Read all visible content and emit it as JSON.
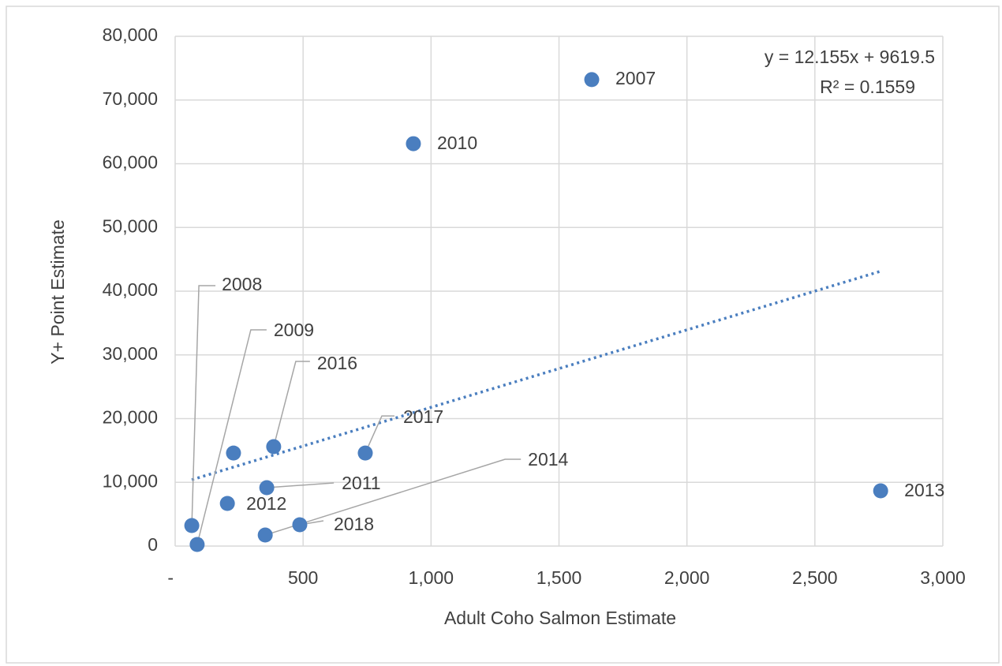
{
  "chart_data": {
    "type": "scatter",
    "x_label": "Adult Coho Salmon Estimate",
    "y_label": "Y+ Point Estimate",
    "labels": [
      "2007",
      "2008",
      "2009",
      "2010",
      "2011",
      "2012",
      "2013",
      "2014",
      null,
      "2016",
      "2017",
      "2018"
    ],
    "x": [
      1628,
      65,
      86,
      931,
      358,
      204,
      2757,
      352,
      228,
      385,
      743,
      487
    ],
    "series": [
      {
        "color": "#4a7ebf",
        "values": [
          73200,
          3220,
          250,
          63150,
          9160,
          6690,
          8670,
          1730,
          14600,
          15600,
          14600,
          3340
        ]
      }
    ],
    "trendline": {
      "slope": 12.155,
      "intercept": 9619.5,
      "equation": "y = 12.155x + 9619.5",
      "r_squared": "R² = 0.1559",
      "color": "#4a7ebf"
    },
    "xlim": [
      0,
      3000
    ],
    "xticks": [
      {
        "value": 0,
        "label": "-"
      },
      500,
      {
        "value": 1000,
        "label": "1,000"
      },
      {
        "value": 1500,
        "label": "1,500"
      },
      {
        "value": 2000,
        "label": "2,000"
      },
      {
        "value": 2500,
        "label": "2,500"
      },
      {
        "value": 3000,
        "label": "3,000"
      }
    ],
    "ylim": [
      0,
      80000
    ],
    "yticks": [
      0,
      {
        "value": 10000,
        "label": "10,000"
      },
      {
        "value": 20000,
        "label": "20,000"
      },
      {
        "value": 30000,
        "label": "30,000"
      },
      {
        "value": 40000,
        "label": "40,000"
      },
      {
        "value": 50000,
        "label": "50,000"
      },
      {
        "value": 60000,
        "label": "60,000"
      },
      {
        "value": 70000,
        "label": "70,000"
      },
      {
        "value": 80000,
        "label": "80,000"
      }
    ],
    "grid": true
  }
}
